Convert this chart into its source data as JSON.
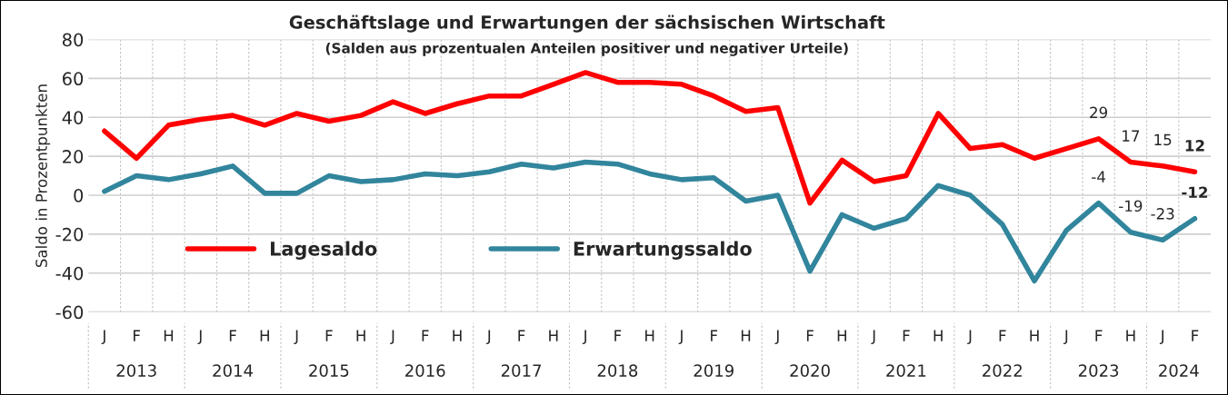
{
  "chart_data": {
    "type": "line",
    "title": "Geschäftslage und Erwartungen der sächsischen Wirtschaft",
    "subtitle": "(Salden aus prozentualen Anteilen positiver und negativer Urteile)",
    "ylabel": "Saldo in Prozentpunkten",
    "categories": [
      "J",
      "F",
      "H",
      "J",
      "F",
      "H",
      "J",
      "F",
      "H",
      "J",
      "F",
      "H",
      "J",
      "F",
      "H",
      "J",
      "F",
      "H",
      "J",
      "F",
      "H",
      "J",
      "F",
      "H",
      "J",
      "F",
      "H",
      "J",
      "F",
      "H",
      "J",
      "F",
      "H",
      "J",
      "F"
    ],
    "annotations": [
      "2013",
      "2014",
      "2015",
      "2016",
      "2017",
      "2018",
      "2019",
      "2020",
      "2021",
      "2022",
      "2023",
      "2024"
    ],
    "series": [
      {
        "name": "Lagesaldo",
        "color": "#ff0000",
        "values": [
          33,
          19,
          36,
          39,
          41,
          36,
          42,
          38,
          41,
          48,
          42,
          47,
          51,
          51,
          57,
          63,
          58,
          58,
          57,
          51,
          43,
          45,
          -4,
          18,
          7,
          10,
          42,
          24,
          26,
          19,
          24,
          29,
          17,
          15,
          12
        ],
        "value_labels": [
          null,
          null,
          null,
          null,
          null,
          null,
          null,
          null,
          null,
          null,
          null,
          null,
          null,
          null,
          null,
          null,
          null,
          null,
          null,
          null,
          null,
          null,
          null,
          null,
          null,
          null,
          null,
          null,
          null,
          null,
          null,
          "29",
          "17",
          "15",
          "12"
        ]
      },
      {
        "name": "Erwartungssaldo",
        "color": "#31859c",
        "values": [
          2,
          10,
          8,
          11,
          15,
          1,
          1,
          10,
          7,
          8,
          11,
          10,
          12,
          16,
          14,
          17,
          16,
          11,
          8,
          9,
          -3,
          0,
          -39,
          -10,
          -17,
          -12,
          5,
          0,
          -15,
          -44,
          -18,
          -4,
          -19,
          -23,
          -12
        ],
        "value_labels": [
          null,
          null,
          null,
          null,
          null,
          null,
          null,
          null,
          null,
          null,
          null,
          null,
          null,
          null,
          null,
          null,
          null,
          null,
          null,
          null,
          null,
          null,
          null,
          null,
          null,
          null,
          null,
          null,
          null,
          null,
          null,
          "-4",
          "-19",
          "-23",
          "-12"
        ]
      }
    ],
    "ylim": [
      -60,
      80
    ],
    "yticks": [
      -60,
      -40,
      -20,
      0,
      20,
      40,
      60,
      80
    ],
    "grid": true,
    "legend": "bottom",
    "line_style": "solid",
    "marker": "none"
  }
}
